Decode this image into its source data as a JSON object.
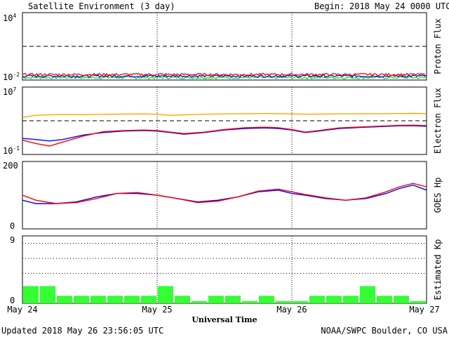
{
  "header": {
    "title": "Satellite Environment (3 day)",
    "begin_label": "Begin:",
    "begin_value": "2018 May 24 0000 UTC"
  },
  "footer": {
    "updated": "Updated 2018 May 26 23:56:05 UTC",
    "credit": "NOAA/SWPC Boulder, CO USA"
  },
  "colors": {
    "red": "#ff0000",
    "blue": "#0000ff",
    "green": "#00ee00",
    "orange": "#ffa500",
    "kp_green": "#33ff33"
  },
  "chart_data": [
    {
      "type": "line",
      "ylabel": "Proton Flux",
      "y_scale": "log",
      "ylim": [
        0.01,
        10000
      ],
      "yticks": [
        {
          "base": "10",
          "exp": "4"
        },
        {
          "base": "10",
          "exp": "-2"
        }
      ],
      "threshold": 10,
      "series_color_order": [
        "red",
        "blue",
        "green"
      ],
      "levels": [
        0.03,
        0.022,
        0.016
      ],
      "x_days": [
        0,
        3
      ]
    },
    {
      "type": "line",
      "ylabel": "Electron Flux",
      "y_scale": "log",
      "ylim": [
        0.1,
        10000000
      ],
      "yticks": [
        {
          "base": "10",
          "exp": "7"
        },
        {
          "base": "10",
          "exp": "-1"
        }
      ],
      "threshold": 1000,
      "x": [
        0,
        0.1,
        0.2,
        0.3,
        0.45,
        0.6,
        0.75,
        0.9,
        1.0,
        1.1,
        1.2,
        1.35,
        1.5,
        1.65,
        1.8,
        1.9,
        2.0,
        2.1,
        2.2,
        2.35,
        2.5,
        2.65,
        2.8,
        2.9,
        3.0
      ],
      "series": [
        {
          "color": "orange",
          "values": [
            2500,
            4500,
            5000,
            5500,
            5200,
            5800,
            6200,
            6500,
            6000,
            4500,
            5000,
            6000,
            6500,
            7000,
            7200,
            7000,
            6500,
            6000,
            6200,
            6500,
            6800,
            7000,
            7200,
            7500,
            7000
          ]
        },
        {
          "color": "blue",
          "values": [
            8,
            6,
            4,
            6,
            20,
            40,
            60,
            70,
            60,
            40,
            25,
            40,
            80,
            120,
            140,
            120,
            80,
            40,
            60,
            120,
            160,
            200,
            250,
            260,
            220
          ]
        },
        {
          "color": "red",
          "values": [
            5,
            2,
            1,
            3,
            15,
            50,
            70,
            80,
            70,
            45,
            30,
            45,
            90,
            150,
            170,
            150,
            90,
            45,
            70,
            140,
            180,
            230,
            280,
            300,
            260
          ]
        }
      ]
    },
    {
      "type": "line",
      "ylabel": "GOES Hp",
      "ylim": [
        0,
        200
      ],
      "yticks": [
        "200",
        "0"
      ],
      "x": [
        0,
        0.1,
        0.25,
        0.4,
        0.55,
        0.7,
        0.85,
        1.0,
        1.15,
        1.3,
        1.45,
        1.6,
        1.75,
        1.9,
        2.0,
        2.1,
        2.25,
        2.4,
        2.55,
        2.7,
        2.8,
        2.9,
        3.0
      ],
      "series": [
        {
          "color": "blue",
          "values": [
            85,
            75,
            75,
            80,
            95,
            105,
            105,
            100,
            90,
            80,
            85,
            95,
            110,
            115,
            105,
            100,
            90,
            85,
            90,
            105,
            120,
            130,
            115
          ]
        },
        {
          "color": "red",
          "values": [
            100,
            85,
            75,
            78,
            90,
            105,
            108,
            100,
            90,
            78,
            82,
            95,
            112,
            118,
            110,
            102,
            92,
            85,
            92,
            110,
            125,
            135,
            125
          ]
        }
      ]
    },
    {
      "type": "bar",
      "ylabel": "Estimated Kp",
      "ylim": [
        0,
        9
      ],
      "yticks": [
        "9",
        "0"
      ],
      "gridlines": [
        4,
        6,
        8,
        9
      ],
      "values": [
        2.3,
        2.3,
        1,
        1,
        1,
        1,
        1,
        1,
        2.3,
        1,
        0.3,
        1,
        1,
        0.3,
        1,
        0.3,
        0.3,
        1,
        1,
        1,
        2.3,
        1,
        1,
        0.3
      ]
    }
  ],
  "xaxis": {
    "label": "Universal Time",
    "ticks": [
      "May 24",
      "May 25",
      "May 26",
      "May 27"
    ]
  }
}
